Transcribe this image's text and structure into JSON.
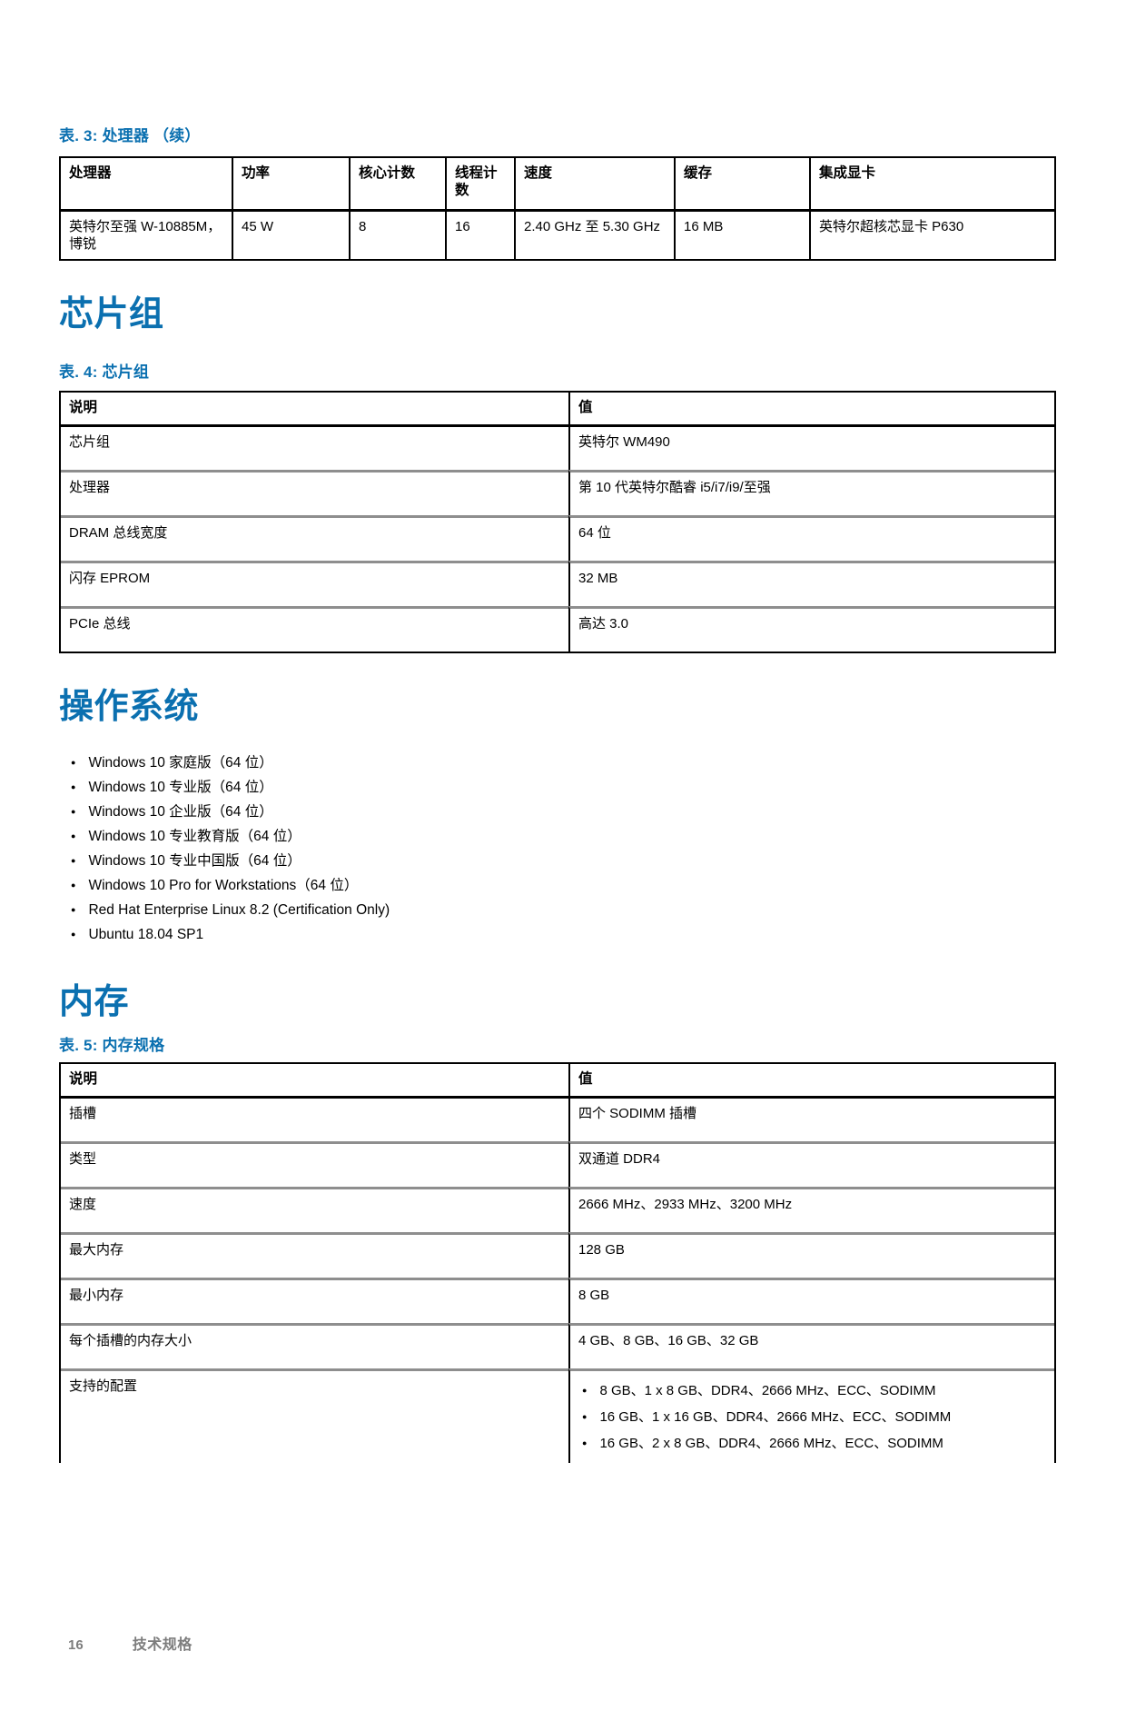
{
  "accent_color": "#0b70b0",
  "processor_table": {
    "caption": "表. 3: 处理器 （续）",
    "headers": [
      "处理器",
      "功率",
      "核心计数",
      "线程计数",
      "速度",
      "缓存",
      "集成显卡"
    ],
    "rows": [
      [
        "英特尔至强 W-10885M，博锐",
        "45 W",
        "8",
        "16",
        "2.40 GHz 至 5.30 GHz",
        "16 MB",
        "英特尔超核芯显卡 P630"
      ]
    ]
  },
  "chipset": {
    "heading": "芯片组",
    "table": {
      "caption": "表. 4: 芯片组",
      "headers": [
        "说明",
        "值"
      ],
      "rows": [
        [
          "芯片组",
          "英特尔 WM490"
        ],
        [
          "处理器",
          "第 10 代英特尔酷睿 i5/i7/i9/至强"
        ],
        [
          "DRAM 总线宽度",
          "64 位"
        ],
        [
          "闪存 EPROM",
          "32 MB"
        ],
        [
          "PCIe 总线",
          "高达 3.0"
        ]
      ]
    }
  },
  "operating_system": {
    "heading": "操作系统",
    "items": [
      "Windows 10 家庭版（64 位）",
      "Windows 10 专业版（64 位）",
      "Windows 10 企业版（64 位）",
      "Windows 10 专业教育版（64 位）",
      "Windows 10 专业中国版（64 位）",
      "Windows 10 Pro for Workstations（64 位）",
      "Red Hat Enterprise Linux 8.2 (Certification Only)",
      "Ubuntu 18.04 SP1"
    ]
  },
  "memory": {
    "heading": "内存",
    "table": {
      "caption": "表. 5: 内存规格",
      "headers": [
        "说明",
        "值"
      ],
      "rows": [
        [
          "插槽",
          "四个 SODIMM 插槽"
        ],
        [
          "类型",
          "双通道 DDR4"
        ],
        [
          "速度",
          "2666 MHz、2933 MHz、3200 MHz"
        ],
        [
          "最大内存",
          "128 GB"
        ],
        [
          "最小内存",
          "8 GB"
        ],
        [
          "每个插槽的内存大小",
          "4 GB、8 GB、16 GB、32 GB"
        ],
        [
          "支持的配置",
          [
            "8 GB、1 x 8 GB、DDR4、2666 MHz、ECC、SODIMM",
            "16 GB、1 x 16 GB、DDR4、2666 MHz、ECC、SODIMM",
            "16 GB、2 x 8 GB、DDR4、2666 MHz、ECC、SODIMM"
          ]
        ]
      ]
    }
  },
  "footer": {
    "page_number": "16",
    "label": "技术规格"
  }
}
